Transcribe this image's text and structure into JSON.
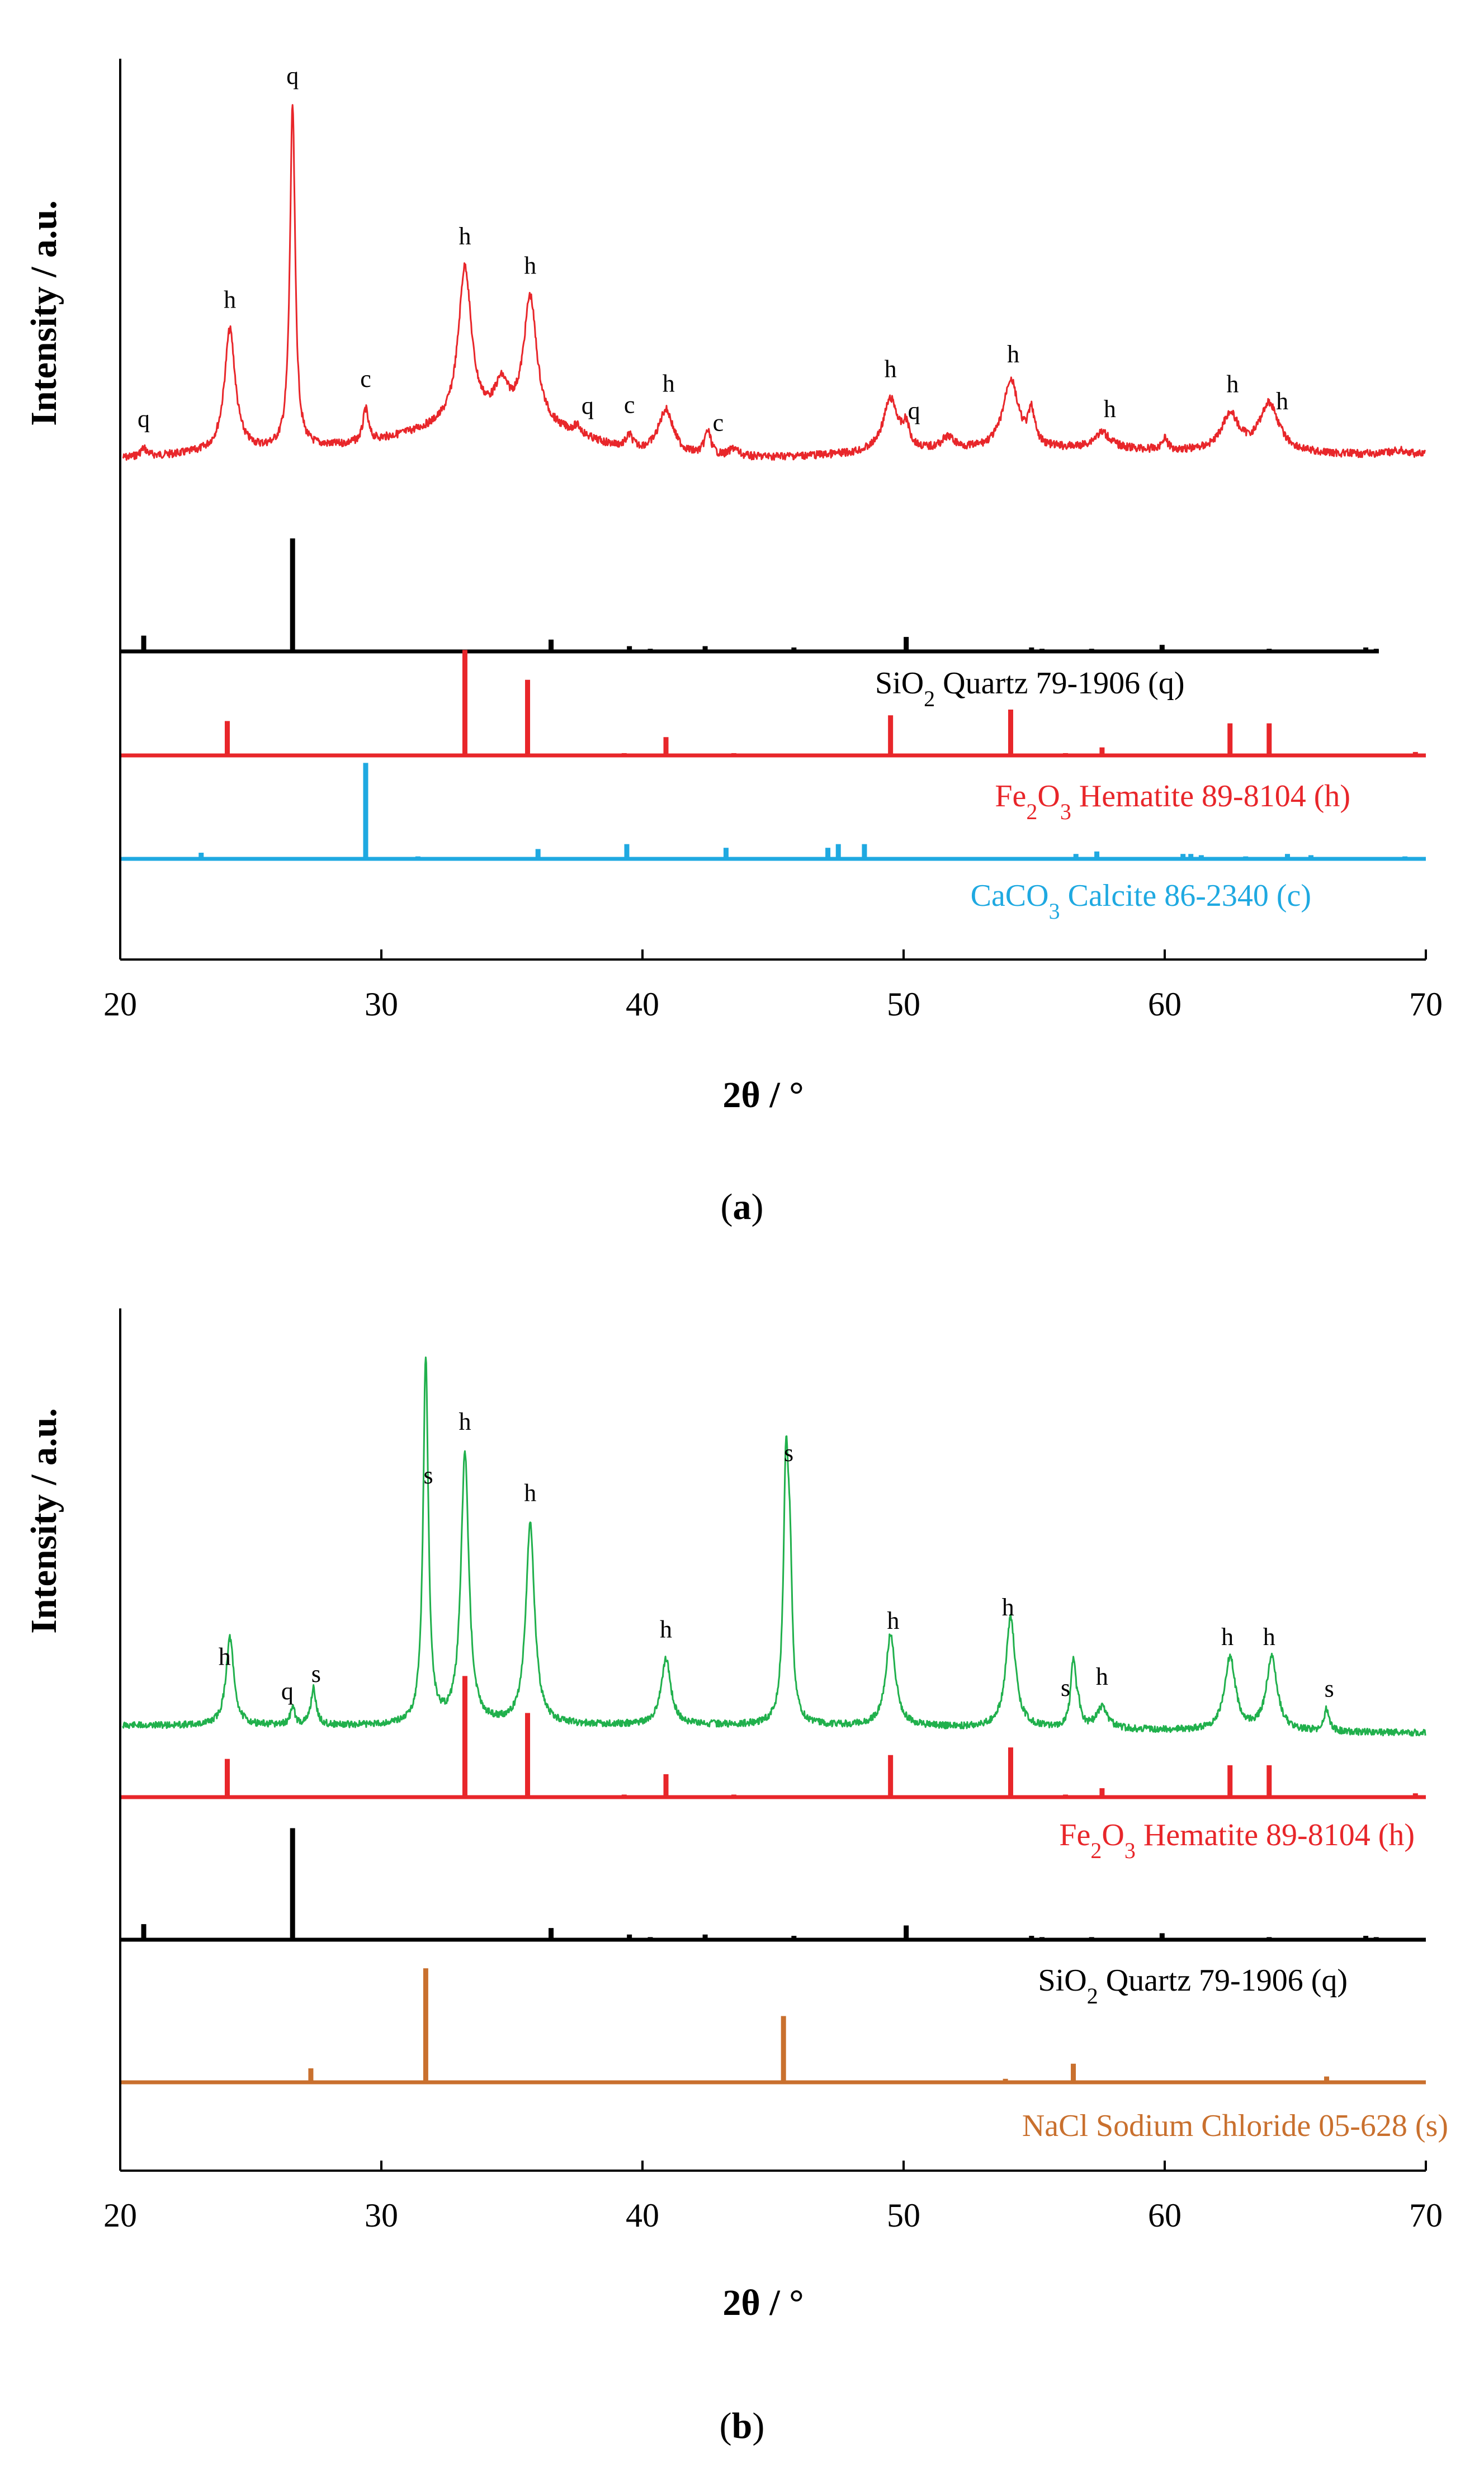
{
  "colors": {
    "axis": "#000000",
    "red": "#e8262a",
    "green": "#20b04c",
    "blue": "#1fa9e1",
    "orange": "#c9702e",
    "black": "#000000"
  },
  "chart_data": [
    {
      "type": "line",
      "panel_label": "a",
      "xlabel": "2θ / °",
      "ylabel": "Intensity / a.u.",
      "xlim": [
        20,
        70
      ],
      "xticks": [
        20,
        30,
        40,
        50,
        60,
        70
      ],
      "measured": {
        "color": "red",
        "baseline": 0.38,
        "peaks": [
          {
            "x": 20.9,
            "h": 0.02,
            "w": 0.15
          },
          {
            "x": 24.2,
            "h": 0.3,
            "w": 0.25
          },
          {
            "x": 26.6,
            "h": 0.84,
            "w": 0.12
          },
          {
            "x": 29.4,
            "h": 0.08,
            "w": 0.12
          },
          {
            "x": 33.2,
            "h": 0.38,
            "w": 0.3
          },
          {
            "x": 34.6,
            "h": 0.08,
            "w": 0.3
          },
          {
            "x": 35.7,
            "h": 0.31,
            "w": 0.3
          },
          {
            "x": 37.5,
            "h": 0.02,
            "w": 0.2
          },
          {
            "x": 39.5,
            "h": 0.03,
            "w": 0.15
          },
          {
            "x": 40.9,
            "h": 0.11,
            "w": 0.35
          },
          {
            "x": 42.5,
            "h": 0.06,
            "w": 0.15
          },
          {
            "x": 43.5,
            "h": 0.02,
            "w": 0.2
          },
          {
            "x": 49.5,
            "h": 0.13,
            "w": 0.35
          },
          {
            "x": 50.1,
            "h": 0.05,
            "w": 0.15
          },
          {
            "x": 51.7,
            "h": 0.03,
            "w": 0.3
          },
          {
            "x": 54.1,
            "h": 0.17,
            "w": 0.35
          },
          {
            "x": 54.9,
            "h": 0.08,
            "w": 0.15
          },
          {
            "x": 57.6,
            "h": 0.04,
            "w": 0.4
          },
          {
            "x": 60.0,
            "h": 0.03,
            "w": 0.12
          },
          {
            "x": 62.5,
            "h": 0.09,
            "w": 0.4
          },
          {
            "x": 64.0,
            "h": 0.12,
            "w": 0.45
          },
          {
            "x": 69.0,
            "h": 0.01,
            "w": 0.4
          }
        ],
        "humps": [
          {
            "x": 27.5,
            "h": 0.03,
            "w": 6.0
          },
          {
            "x": 34.5,
            "h": 0.08,
            "w": 3.0
          },
          {
            "x": 55.0,
            "h": 0.02,
            "w": 6.0
          }
        ],
        "peak_labels": [
          {
            "x": 20.9,
            "text": "q"
          },
          {
            "x": 24.2,
            "text": "h"
          },
          {
            "x": 26.6,
            "text": "q"
          },
          {
            "x": 29.4,
            "text": "c"
          },
          {
            "x": 33.2,
            "text": "h"
          },
          {
            "x": 35.7,
            "text": "h"
          },
          {
            "x": 37.9,
            "text": "q"
          },
          {
            "x": 39.5,
            "text": "c"
          },
          {
            "x": 41.0,
            "text": "h"
          },
          {
            "x": 42.9,
            "text": "c"
          },
          {
            "x": 49.5,
            "text": "h"
          },
          {
            "x": 50.4,
            "text": "q"
          },
          {
            "x": 54.2,
            "text": "h"
          },
          {
            "x": 57.9,
            "text": "h"
          },
          {
            "x": 62.6,
            "text": "h"
          },
          {
            "x": 64.5,
            "text": "h"
          }
        ]
      },
      "references": [
        {
          "key": "q",
          "color": "black",
          "name_sub": [
            "SiO",
            "2",
            " Quartz 79-1906 (q)"
          ],
          "x_end": 68.2,
          "sticks": [
            [
              20.9,
              0.12
            ],
            [
              26.6,
              0.86
            ],
            [
              36.5,
              0.09
            ],
            [
              39.5,
              0.04
            ],
            [
              40.3,
              0.02
            ],
            [
              42.4,
              0.04
            ],
            [
              45.8,
              0.03
            ],
            [
              50.1,
              0.11
            ],
            [
              54.9,
              0.03
            ],
            [
              55.3,
              0.02
            ],
            [
              57.2,
              0.02
            ],
            [
              59.9,
              0.05
            ],
            [
              64.0,
              0.02
            ],
            [
              67.7,
              0.03
            ],
            [
              68.1,
              0.02
            ]
          ]
        },
        {
          "key": "h",
          "color": "red",
          "name_sub": [
            "Fe",
            "2",
            "O",
            "3",
            " Hematite 89-8104 (h)"
          ],
          "x_end": 70,
          "sticks": [
            [
              24.1,
              0.3
            ],
            [
              33.2,
              0.92
            ],
            [
              35.6,
              0.66
            ],
            [
              39.3,
              0.02
            ],
            [
              40.9,
              0.16
            ],
            [
              43.5,
              0.02
            ],
            [
              49.5,
              0.35
            ],
            [
              54.1,
              0.4
            ],
            [
              56.2,
              0.02
            ],
            [
              57.6,
              0.07
            ],
            [
              62.5,
              0.28
            ],
            [
              64.0,
              0.28
            ],
            [
              69.6,
              0.03
            ]
          ]
        },
        {
          "key": "c",
          "color": "blue",
          "name_sub": [
            "CaCO",
            "3",
            " Calcite 86-2340 (c)"
          ],
          "x_end": 70,
          "sticks": [
            [
              23.1,
              0.05
            ],
            [
              29.4,
              0.78
            ],
            [
              31.4,
              0.02
            ],
            [
              36.0,
              0.08
            ],
            [
              39.4,
              0.12
            ],
            [
              43.2,
              0.09
            ],
            [
              47.1,
              0.09
            ],
            [
              47.5,
              0.12
            ],
            [
              48.5,
              0.12
            ],
            [
              56.6,
              0.04
            ],
            [
              57.4,
              0.06
            ],
            [
              60.7,
              0.04
            ],
            [
              61.0,
              0.04
            ],
            [
              61.4,
              0.03
            ],
            [
              63.1,
              0.02
            ],
            [
              64.7,
              0.04
            ],
            [
              65.6,
              0.03
            ],
            [
              69.2,
              0.02
            ]
          ]
        }
      ]
    },
    {
      "type": "line",
      "panel_label": "b",
      "xlabel": "2θ / °",
      "ylabel": "Intensity / a.u.",
      "xlim": [
        20,
        70
      ],
      "xticks": [
        20,
        30,
        40,
        50,
        60,
        70
      ],
      "measured": {
        "color": "green",
        "baseline": 0.2,
        "peaks": [
          {
            "x": 24.2,
            "h": 0.24,
            "w": 0.18
          },
          {
            "x": 26.6,
            "h": 0.05,
            "w": 0.1
          },
          {
            "x": 27.4,
            "h": 0.1,
            "w": 0.12
          },
          {
            "x": 31.7,
            "h": 1.0,
            "w": 0.12
          },
          {
            "x": 33.2,
            "h": 0.74,
            "w": 0.18
          },
          {
            "x": 35.7,
            "h": 0.55,
            "w": 0.2
          },
          {
            "x": 40.9,
            "h": 0.18,
            "w": 0.22
          },
          {
            "x": 45.5,
            "h": 0.69,
            "w": 0.12
          },
          {
            "x": 45.65,
            "h": 0.32,
            "w": 0.1
          },
          {
            "x": 49.5,
            "h": 0.25,
            "w": 0.22
          },
          {
            "x": 54.1,
            "h": 0.3,
            "w": 0.22
          },
          {
            "x": 56.5,
            "h": 0.18,
            "w": 0.12
          },
          {
            "x": 56.7,
            "h": 0.04,
            "w": 0.1
          },
          {
            "x": 57.6,
            "h": 0.06,
            "w": 0.25
          },
          {
            "x": 62.5,
            "h": 0.2,
            "w": 0.25
          },
          {
            "x": 64.1,
            "h": 0.2,
            "w": 0.25
          },
          {
            "x": 66.2,
            "h": 0.06,
            "w": 0.12
          }
        ],
        "humps": [
          {
            "x": 45.0,
            "h": 0.01,
            "w": 10.0
          }
        ],
        "peak_labels": [
          {
            "x": 24.0,
            "text": "h"
          },
          {
            "x": 26.4,
            "text": "q"
          },
          {
            "x": 27.5,
            "text": "s"
          },
          {
            "x": 31.8,
            "text": "s"
          },
          {
            "x": 33.2,
            "text": "h"
          },
          {
            "x": 35.7,
            "text": "h"
          },
          {
            "x": 40.9,
            "text": "h"
          },
          {
            "x": 45.6,
            "text": "s"
          },
          {
            "x": 49.6,
            "text": "h"
          },
          {
            "x": 54.0,
            "text": "h"
          },
          {
            "x": 56.2,
            "text": "s"
          },
          {
            "x": 57.6,
            "text": "h"
          },
          {
            "x": 62.4,
            "text": "h"
          },
          {
            "x": 64.0,
            "text": "h"
          },
          {
            "x": 66.3,
            "text": "s"
          }
        ]
      },
      "references": [
        {
          "key": "h",
          "color": "red",
          "name_sub": [
            "Fe",
            "2",
            "O",
            "3",
            " Hematite 89-8104 (h)"
          ],
          "x_end": 70,
          "sticks": [
            [
              24.1,
              0.3
            ],
            [
              33.2,
              0.95
            ],
            [
              35.6,
              0.66
            ],
            [
              39.3,
              0.02
            ],
            [
              40.9,
              0.18
            ],
            [
              43.5,
              0.02
            ],
            [
              49.5,
              0.33
            ],
            [
              54.1,
              0.39
            ],
            [
              56.2,
              0.02
            ],
            [
              57.6,
              0.07
            ],
            [
              62.5,
              0.25
            ],
            [
              64.0,
              0.25
            ],
            [
              69.6,
              0.03
            ]
          ]
        },
        {
          "key": "q",
          "color": "black",
          "name_sub": [
            "SiO",
            "2",
            " Quartz 79-1906 (q)"
          ],
          "x_end": 70,
          "sticks": [
            [
              20.9,
              0.12
            ],
            [
              26.6,
              0.86
            ],
            [
              36.5,
              0.09
            ],
            [
              39.5,
              0.04
            ],
            [
              40.3,
              0.02
            ],
            [
              42.4,
              0.04
            ],
            [
              45.8,
              0.03
            ],
            [
              50.1,
              0.11
            ],
            [
              54.9,
              0.03
            ],
            [
              55.3,
              0.02
            ],
            [
              57.2,
              0.02
            ],
            [
              59.9,
              0.05
            ],
            [
              64.0,
              0.02
            ],
            [
              67.7,
              0.03
            ],
            [
              68.1,
              0.02
            ]
          ]
        },
        {
          "key": "s",
          "color": "orange",
          "name_sub": [
            "NaCl Sodium Chloride 05-628 (s)"
          ],
          "x_end": 70,
          "sticks": [
            [
              27.3,
              0.12
            ],
            [
              31.7,
              0.98
            ],
            [
              45.4,
              0.57
            ],
            [
              53.9,
              0.03
            ],
            [
              56.5,
              0.16
            ],
            [
              66.2,
              0.05
            ]
          ]
        }
      ]
    }
  ]
}
